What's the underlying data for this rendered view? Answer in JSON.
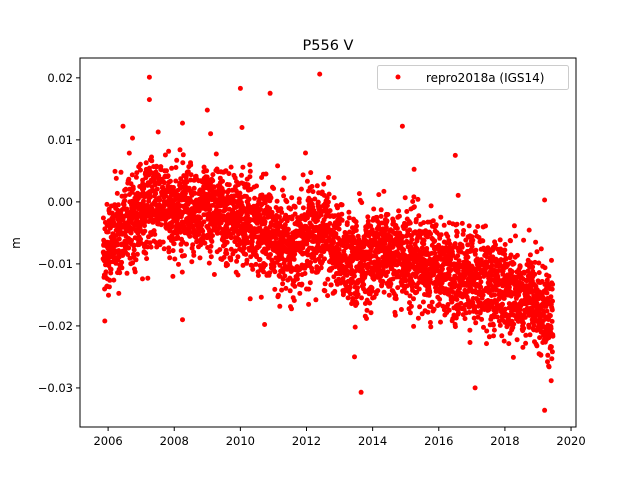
{
  "chart_data": {
    "type": "scatter",
    "title": "P556 V",
    "xlabel": "",
    "ylabel": "m",
    "xlim": [
      2005.15,
      2020.15
    ],
    "ylim": [
      -0.0363,
      0.0232
    ],
    "xticks": [
      2006,
      2008,
      2010,
      2012,
      2014,
      2016,
      2018,
      2020
    ],
    "xtick_labels": [
      "2006",
      "2008",
      "2010",
      "2012",
      "2014",
      "2016",
      "2018",
      "2020"
    ],
    "yticks": [
      0.02,
      0.01,
      0.0,
      -0.01,
      -0.02,
      -0.03
    ],
    "ytick_labels": [
      "0.02",
      "0.01",
      "0.00",
      "−0.01",
      "−0.02",
      "−0.03"
    ],
    "grid": false,
    "legend": {
      "placement": "top-right",
      "entries": [
        "repro2018a (IGS14)"
      ]
    },
    "series": [
      {
        "name": "repro2018a (IGS14)",
        "color": "#ff0000",
        "marker": "circle",
        "x_range": [
          2005.85,
          2019.45
        ],
        "trend_x": [
          2005.85,
          2006.5,
          2007.0,
          2007.5,
          2008.0,
          2008.5,
          2009.0,
          2009.5,
          2010.0,
          2010.5,
          2011.0,
          2011.5,
          2012.0,
          2012.5,
          2013.0,
          2013.5,
          2014.0,
          2014.5,
          2015.0,
          2015.5,
          2016.0,
          2016.5,
          2017.0,
          2017.5,
          2018.0,
          2018.5,
          2019.0,
          2019.45
        ],
        "trend_y": [
          -0.008,
          -0.004,
          -0.001,
          0.0,
          -0.002,
          -0.002,
          -0.001,
          -0.002,
          -0.003,
          -0.004,
          -0.006,
          -0.007,
          -0.005,
          -0.005,
          -0.008,
          -0.01,
          -0.009,
          -0.008,
          -0.009,
          -0.01,
          -0.01,
          -0.012,
          -0.012,
          -0.013,
          -0.014,
          -0.015,
          -0.016,
          -0.019
        ],
        "spread_std": 0.0037,
        "outliers_x": [
          2007.25,
          2007.25,
          2012.4,
          2010.0,
          2010.9,
          2009.0,
          2014.9,
          2006.45,
          2008.25,
          2013.65,
          2019.2,
          2013.45,
          2008.25,
          2005.9,
          2019.2,
          2017.1,
          2016.5,
          2010.05,
          2009.1
        ],
        "outliers_y": [
          0.0201,
          0.0165,
          0.0206,
          0.0183,
          0.0175,
          0.0148,
          0.0122,
          0.0122,
          0.0127,
          -0.0307,
          -0.0336,
          -0.025,
          -0.019,
          -0.0192,
          0.0003,
          -0.03,
          0.0075,
          0.012,
          0.011
        ]
      }
    ]
  }
}
